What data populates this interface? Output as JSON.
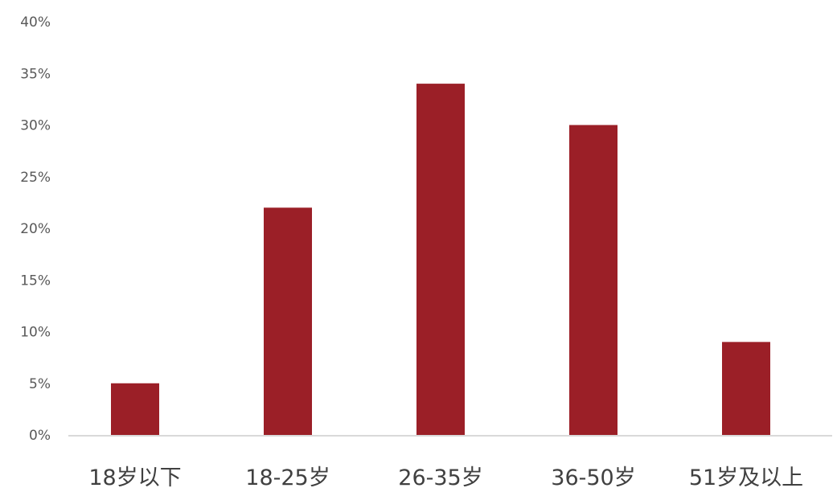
{
  "chart_data": {
    "type": "bar",
    "categories": [
      "18岁以下",
      "18-25岁",
      "26-35岁",
      "36-50岁",
      "51岁及以上"
    ],
    "values": [
      5,
      22,
      34,
      30,
      9
    ],
    "value_unit": "%",
    "ylim": [
      0,
      40
    ],
    "y_ticks": [
      0,
      5,
      10,
      15,
      20,
      25,
      30,
      35,
      40
    ],
    "y_tick_labels": [
      "0%",
      "5%",
      "10%",
      "15%",
      "20%",
      "25%",
      "30%",
      "35%",
      "40%"
    ],
    "title": "",
    "xlabel": "",
    "ylabel": "",
    "grid": false,
    "legend": "none",
    "bar_color": "#9b1f27",
    "axis_color": "#d9d9d9"
  }
}
